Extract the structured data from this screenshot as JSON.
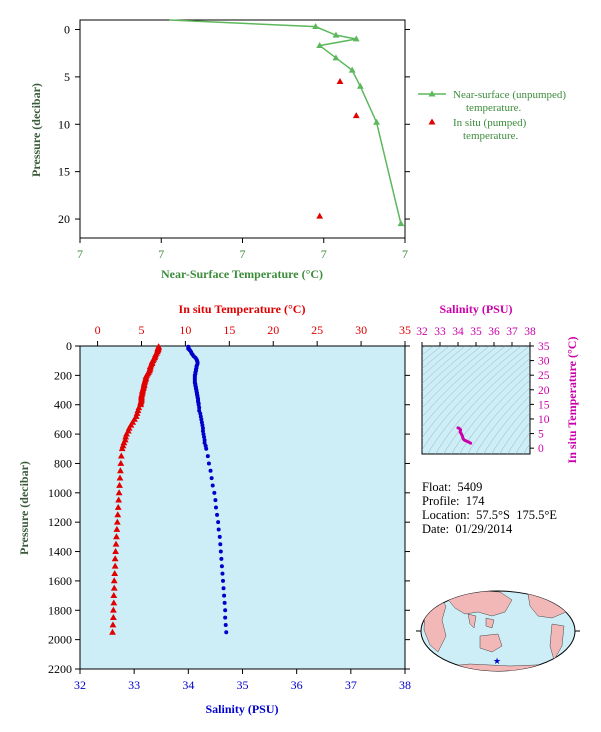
{
  "float_info": {
    "float_label": "Float:  5409",
    "profile_label": "Profile:  174",
    "location_label": "Location:  57.5°S  175.5°E",
    "date_label": "Date:  01/29/2014"
  },
  "colors": {
    "green": "#5cb85c",
    "green_text": "#3c8c3c",
    "red": "#e00000",
    "blue": "#0000cc",
    "magenta": "#cc00aa",
    "plot_bg": "#cdeef7",
    "axis_text": "#000000",
    "title_text": "#3a5a3a",
    "land": "#f2b8b8",
    "ocean": "#cdeef7"
  },
  "chart_data": [
    {
      "id": "near_surface",
      "type": "line",
      "xlabel": "Near-Surface Temperature (°C)",
      "ylabel": "Pressure (decibar)",
      "x_tick_labels": [
        "7",
        "7",
        "7",
        "7",
        "7"
      ],
      "y_ticks": [
        0,
        5,
        10,
        15,
        20
      ],
      "ylim": [
        22,
        -1
      ],
      "xlim": [
        0,
        4
      ],
      "series": [
        {
          "name": "Near-surface (unpumped) temperature.",
          "marker": "triangle-line",
          "points": [
            [
              1.1,
              -1.0
            ],
            [
              2.9,
              -0.3
            ],
            [
              3.15,
              0.6
            ],
            [
              3.4,
              1.0
            ],
            [
              2.95,
              1.7
            ],
            [
              3.15,
              3.0
            ],
            [
              3.35,
              4.3
            ],
            [
              3.45,
              6.0
            ],
            [
              3.65,
              9.8
            ],
            [
              3.95,
              20.5
            ]
          ]
        },
        {
          "name": "In situ (pumped) temperature.",
          "marker": "triangle",
          "points": [
            [
              3.2,
              5.5
            ],
            [
              3.4,
              9.1
            ],
            [
              2.95,
              19.7
            ]
          ]
        }
      ]
    },
    {
      "id": "profile",
      "type": "scatter",
      "title_top": "In situ Temperature (°C)",
      "xlabel_bottom": "Salinity (PSU)",
      "ylabel": "Pressure (decibar)",
      "temp_ticks": [
        0,
        5,
        10,
        15,
        20,
        25,
        30,
        35
      ],
      "temp_lim": [
        -2,
        35
      ],
      "sal_ticks": [
        32,
        33,
        34,
        35,
        36,
        37,
        38
      ],
      "sal_lim": [
        32,
        38
      ],
      "y_ticks": [
        0,
        200,
        400,
        600,
        800,
        1000,
        1200,
        1400,
        1600,
        1800,
        2000,
        2200
      ],
      "ylim": [
        2200,
        0
      ],
      "temperature": {
        "pressure": [
          5,
          10,
          15,
          20,
          25,
          30,
          40,
          50,
          60,
          70,
          80,
          90,
          100,
          110,
          120,
          130,
          140,
          150,
          160,
          170,
          180,
          190,
          200,
          210,
          220,
          230,
          240,
          250,
          260,
          270,
          280,
          290,
          300,
          310,
          320,
          330,
          340,
          350,
          360,
          370,
          380,
          390,
          400,
          420,
          440,
          460,
          480,
          500,
          520,
          540,
          560,
          580,
          600,
          620,
          640,
          660,
          680,
          700,
          750,
          800,
          850,
          900,
          950,
          1000,
          1050,
          1100,
          1150,
          1200,
          1250,
          1300,
          1350,
          1400,
          1450,
          1500,
          1550,
          1600,
          1650,
          1700,
          1750,
          1800,
          1850,
          1900,
          1950
        ],
        "values": [
          6.95,
          6.95,
          6.9,
          6.85,
          6.9,
          6.85,
          6.8,
          6.7,
          6.6,
          6.55,
          6.5,
          6.4,
          6.3,
          6.2,
          6.2,
          6.1,
          6.0,
          6.0,
          5.95,
          5.9,
          5.8,
          5.7,
          5.6,
          5.5,
          5.5,
          5.45,
          5.4,
          5.35,
          5.3,
          5.3,
          5.25,
          5.2,
          5.15,
          5.1,
          5.1,
          5.05,
          5.0,
          5.0,
          5.0,
          5.0,
          4.95,
          4.9,
          4.9,
          4.7,
          4.6,
          4.5,
          4.4,
          4.2,
          4.0,
          3.8,
          3.6,
          3.5,
          3.3,
          3.2,
          3.15,
          3.0,
          2.9,
          2.8,
          2.7,
          2.65,
          2.6,
          2.55,
          2.5,
          2.45,
          2.4,
          2.35,
          2.3,
          2.25,
          2.2,
          2.15,
          2.1,
          2.05,
          2.0,
          2.0,
          1.95,
          1.9,
          1.9,
          1.85,
          1.85,
          1.8,
          1.8,
          1.75,
          1.7
        ]
      },
      "salinity": {
        "pressure": [
          5,
          10,
          15,
          20,
          25,
          30,
          40,
          50,
          60,
          70,
          80,
          90,
          100,
          110,
          120,
          130,
          140,
          150,
          160,
          170,
          180,
          190,
          200,
          210,
          220,
          230,
          240,
          250,
          260,
          270,
          280,
          290,
          300,
          310,
          320,
          330,
          340,
          350,
          360,
          370,
          380,
          390,
          400,
          420,
          440,
          460,
          480,
          500,
          520,
          540,
          560,
          580,
          600,
          620,
          640,
          660,
          680,
          700,
          750,
          800,
          850,
          900,
          950,
          1000,
          1050,
          1100,
          1150,
          1200,
          1250,
          1300,
          1350,
          1400,
          1450,
          1500,
          1550,
          1600,
          1650,
          1700,
          1750,
          1800,
          1850,
          1900,
          1950
        ],
        "values": [
          34.0,
          34.0,
          34.0,
          34.0,
          34.02,
          34.03,
          34.05,
          34.06,
          34.08,
          34.1,
          34.13,
          34.15,
          34.16,
          34.17,
          34.17,
          34.16,
          34.15,
          34.15,
          34.14,
          34.14,
          34.13,
          34.13,
          34.12,
          34.12,
          34.12,
          34.12,
          34.12,
          34.12,
          34.13,
          34.13,
          34.14,
          34.14,
          34.15,
          34.15,
          34.16,
          34.16,
          34.17,
          34.17,
          34.18,
          34.18,
          34.18,
          34.19,
          34.19,
          34.2,
          34.2,
          34.22,
          34.23,
          34.24,
          34.25,
          34.26,
          34.27,
          34.27,
          34.28,
          34.29,
          34.3,
          34.3,
          34.32,
          34.33,
          34.36,
          34.38,
          34.41,
          34.43,
          34.45,
          34.48,
          34.5,
          34.51,
          34.53,
          34.55,
          34.56,
          34.58,
          34.59,
          34.6,
          34.61,
          34.62,
          34.63,
          34.64,
          34.65,
          34.66,
          34.67,
          34.68,
          34.68,
          34.69,
          34.7
        ]
      }
    },
    {
      "id": "ts_diagram",
      "type": "scatter",
      "title_top": "Salinity (PSU)",
      "ylabel_right": "In situ Temperature (°C)",
      "sal_ticks": [
        32,
        33,
        34,
        35,
        36,
        37,
        38
      ],
      "sal_lim": [
        32,
        38
      ],
      "temp_ticks": [
        0,
        5,
        10,
        15,
        20,
        25,
        30,
        35
      ],
      "temp_lim": [
        -2,
        35
      ],
      "points_salinity": [
        34.0,
        34.05,
        34.1,
        34.15,
        34.13,
        34.12,
        34.15,
        34.18,
        34.2,
        34.24,
        34.28,
        34.33,
        34.38,
        34.45,
        34.52,
        34.58,
        34.62,
        34.66,
        34.7
      ],
      "points_temperature": [
        6.95,
        6.85,
        6.6,
        6.2,
        5.9,
        5.5,
        5.2,
        5.0,
        4.7,
        4.2,
        3.3,
        2.9,
        2.65,
        2.5,
        2.3,
        2.1,
        2.0,
        1.85,
        1.7
      ]
    }
  ]
}
